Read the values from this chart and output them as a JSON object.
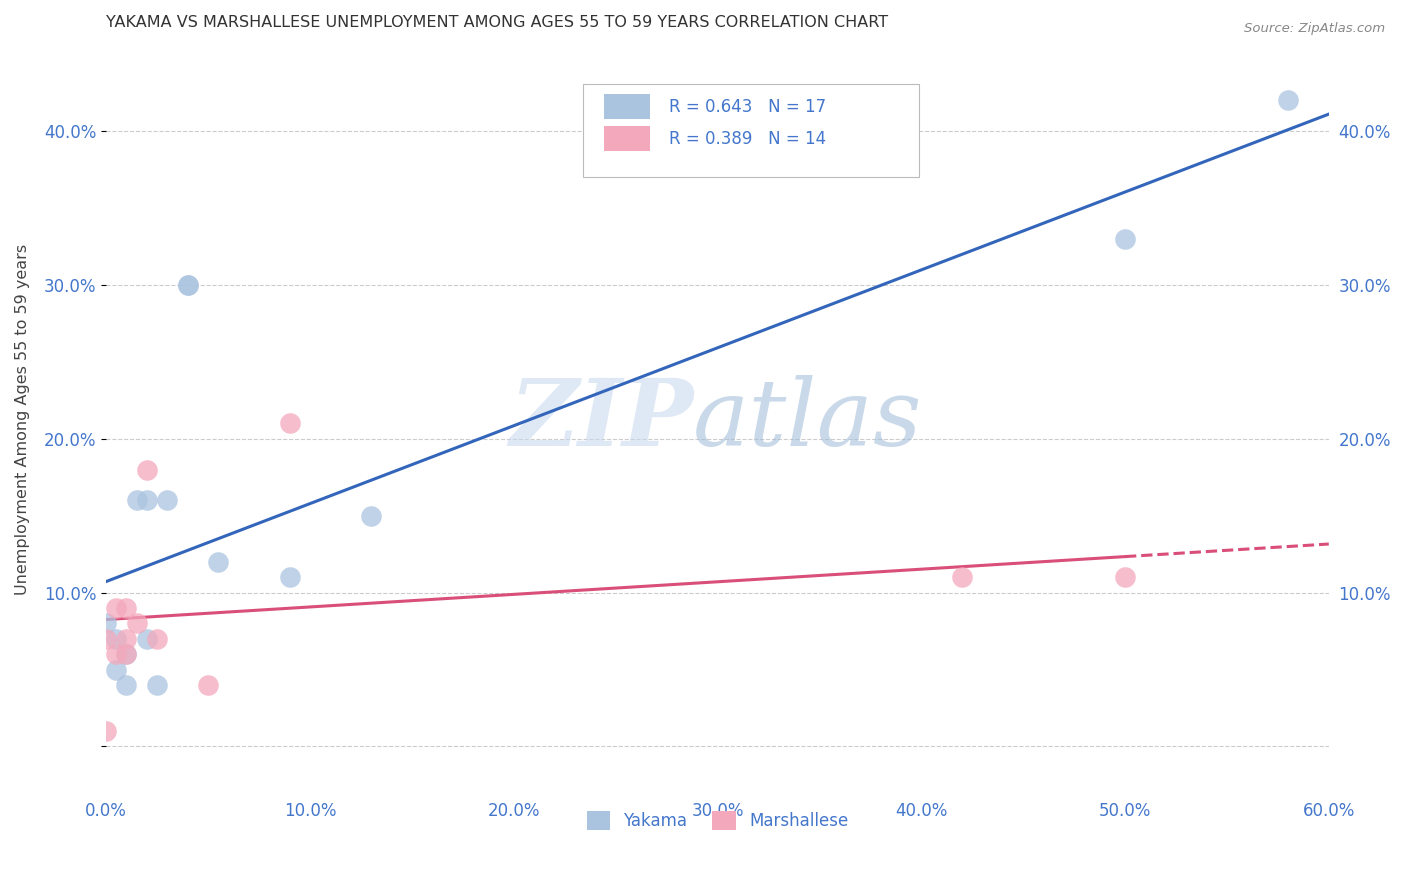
{
  "title": "YAKAMA VS MARSHALLESE UNEMPLOYMENT AMONG AGES 55 TO 59 YEARS CORRELATION CHART",
  "source": "Source: ZipAtlas.com",
  "ylabel": "Unemployment Among Ages 55 to 59 years",
  "xlim": [
    0.0,
    0.6
  ],
  "ylim": [
    -0.03,
    0.455
  ],
  "xticks": [
    0.0,
    0.1,
    0.2,
    0.3,
    0.4,
    0.5,
    0.6
  ],
  "yticks": [
    0.0,
    0.1,
    0.2,
    0.3,
    0.4
  ],
  "ytick_labels": [
    "",
    "10.0%",
    "20.0%",
    "30.0%",
    "40.0%"
  ],
  "xtick_labels": [
    "0.0%",
    "10.0%",
    "20.0%",
    "30.0%",
    "40.0%",
    "50.0%",
    "60.0%"
  ],
  "legend_labels": [
    "Yakama",
    "Marshallese"
  ],
  "R_yakama": 0.643,
  "N_yakama": 17,
  "R_marshallese": 0.389,
  "N_marshallese": 14,
  "yakama_color": "#aac4e0",
  "marshallese_color": "#f4a8bc",
  "yakama_line_color": "#3366bb",
  "marshallese_line_color": "#d94f7a",
  "watermark_zip": "ZIP",
  "watermark_atlas": "atlas",
  "yakama_x": [
    0.0,
    0.005,
    0.005,
    0.01,
    0.01,
    0.015,
    0.02,
    0.02,
    0.025,
    0.03,
    0.04,
    0.04,
    0.055,
    0.09,
    0.13,
    0.5,
    0.58
  ],
  "yakama_y": [
    0.08,
    0.07,
    0.05,
    0.06,
    0.04,
    0.16,
    0.16,
    0.07,
    0.04,
    0.16,
    0.3,
    0.3,
    0.12,
    0.11,
    0.15,
    0.33,
    0.42
  ],
  "marshallese_x": [
    0.0,
    0.0,
    0.005,
    0.005,
    0.01,
    0.01,
    0.01,
    0.015,
    0.02,
    0.025,
    0.05,
    0.09,
    0.42,
    0.5
  ],
  "marshallese_y": [
    0.01,
    0.07,
    0.06,
    0.09,
    0.06,
    0.07,
    0.09,
    0.08,
    0.18,
    0.07,
    0.04,
    0.21,
    0.11,
    0.11
  ],
  "background_color": "#ffffff",
  "grid_color": "#cccccc",
  "tick_color": "#4477cc"
}
